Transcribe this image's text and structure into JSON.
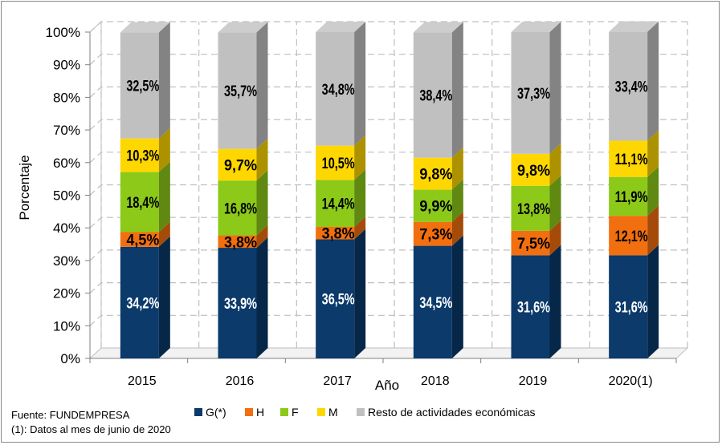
{
  "chart_data": {
    "type": "bar",
    "stacked": true,
    "three_d": true,
    "categories": [
      "2015",
      "2016",
      "2017",
      "2018",
      "2019",
      "2020(1)"
    ],
    "series": [
      {
        "name": "G(*)",
        "values": [
          34.2,
          33.9,
          36.5,
          34.5,
          31.6,
          31.6
        ],
        "labels": [
          "34,2%",
          "33,9%",
          "36,5%",
          "34,5%",
          "31,6%",
          "31,6%"
        ]
      },
      {
        "name": "H",
        "values": [
          4.5,
          3.8,
          3.8,
          7.3,
          7.5,
          12.1
        ],
        "labels": [
          "4,5%",
          "3,8%",
          "3,8%",
          "7,3%",
          "7,5%",
          "12,1%"
        ]
      },
      {
        "name": "F",
        "values": [
          18.4,
          16.8,
          14.4,
          9.9,
          13.8,
          11.9
        ],
        "labels": [
          "18,4%",
          "16,8%",
          "14,4%",
          "9,9%",
          "13,8%",
          "11,9%"
        ]
      },
      {
        "name": "M",
        "values": [
          10.3,
          9.7,
          10.5,
          9.8,
          9.8,
          11.1
        ],
        "labels": [
          "10,3%",
          "9,7%",
          "10,5%",
          "9,8%",
          "9,8%",
          "11,1%"
        ]
      },
      {
        "name": "Resto de actividades económicas",
        "values": [
          32.5,
          35.7,
          34.8,
          38.4,
          37.3,
          33.4
        ],
        "labels": [
          "32,5%",
          "35,7%",
          "34,8%",
          "38,4%",
          "37,3%",
          "33,4%"
        ]
      }
    ],
    "xlabel": "Año",
    "ylabel": "Porcentaje",
    "ylim": [
      0,
      100
    ],
    "yticks": [
      "0%",
      "10%",
      "20%",
      "30%",
      "40%",
      "50%",
      "60%",
      "70%",
      "80%",
      "90%",
      "100%"
    ],
    "grid": true,
    "legend_position": "bottom",
    "colors": {
      "G(*)": "#0b3a6b",
      "H": "#f26f0f",
      "F": "#8cc919",
      "M": "#ffd700",
      "Resto de actividades económicas": "#c0c0c0"
    }
  },
  "footer": {
    "source": "Fuente: FUNDEMPRESA",
    "note": "(1): Datos al mes de junio de 2020"
  }
}
